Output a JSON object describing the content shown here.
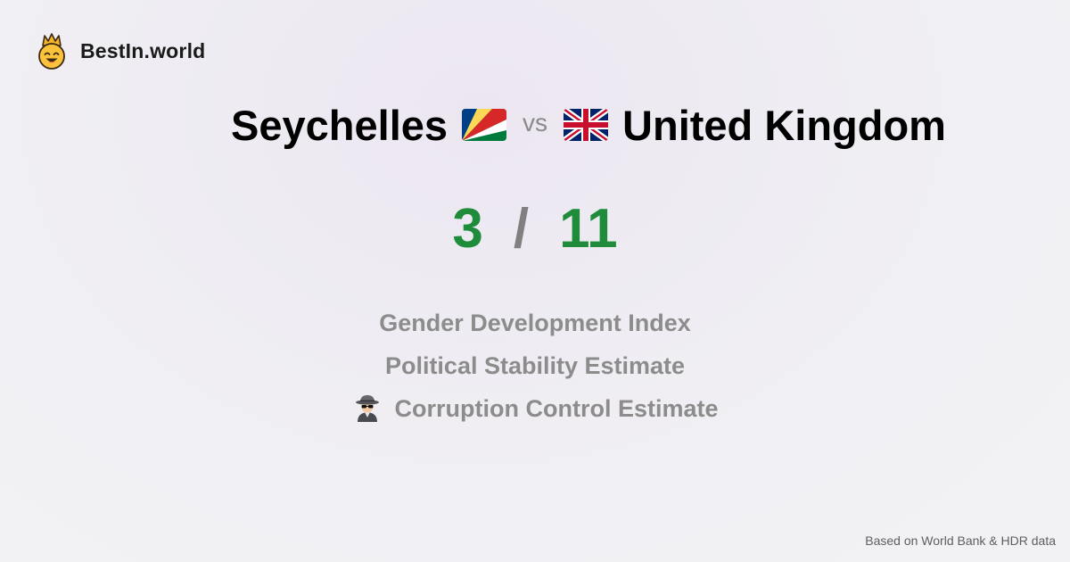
{
  "brand": {
    "name": "BestIn.world",
    "logo_icon": "crowned-smiley-icon"
  },
  "comparison": {
    "left_country": "Seychelles",
    "left_flag_icon": "seychelles-flag-icon",
    "vs_label": "vs",
    "right_country": "United Kingdom",
    "right_flag_icon": "uk-flag-icon"
  },
  "score": {
    "left": "3",
    "separator": "/",
    "right": "11",
    "color": "#1e8c3a"
  },
  "metrics": [
    {
      "label": "Gender Development Index"
    },
    {
      "label": "Political Stability Estimate"
    },
    {
      "label": "Corruption Control Estimate",
      "icon": "detective-icon"
    }
  ],
  "footer": {
    "source": "Based on World Bank & HDR data"
  }
}
